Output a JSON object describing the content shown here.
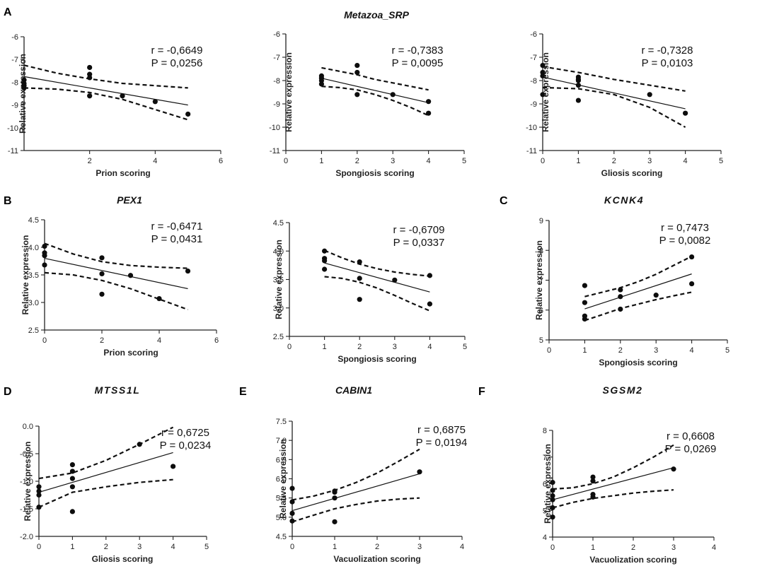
{
  "panel_letters": [
    "A",
    "B",
    "C",
    "D",
    "E",
    "F"
  ],
  "chart_data": [
    {
      "id": "a1",
      "panel": "A",
      "type": "scatter",
      "title": "Metazoa_SRP",
      "xlabel": "Prion scoring",
      "ylabel": "Relative expression",
      "xlim": [
        0,
        6
      ],
      "ylim": [
        -11,
        -6
      ],
      "xticks": [
        2,
        4,
        6
      ],
      "yticks": [
        -11,
        -10,
        -9,
        -8,
        -7,
        -6
      ],
      "r_text": "r = -0,6649",
      "p_text": "P = 0,0256",
      "points": [
        [
          0,
          -7.9
        ],
        [
          0,
          -8.05
        ],
        [
          0,
          -8.15
        ],
        [
          0,
          -8.25
        ],
        [
          2,
          -7.35
        ],
        [
          2,
          -7.65
        ],
        [
          2,
          -7.8
        ],
        [
          2,
          -8.6
        ],
        [
          3,
          -8.6
        ],
        [
          4,
          -8.85
        ],
        [
          5,
          -9.4
        ]
      ],
      "fit": {
        "intercept": -7.75,
        "slope": -0.25
      },
      "ci_upper": [
        [
          0,
          -7.25
        ],
        [
          1,
          -7.6
        ],
        [
          2,
          -7.85
        ],
        [
          3,
          -8.05
        ],
        [
          4,
          -8.15
        ],
        [
          5,
          -8.25
        ]
      ],
      "ci_lower": [
        [
          0,
          -8.25
        ],
        [
          1,
          -8.3
        ],
        [
          2,
          -8.45
        ],
        [
          3,
          -8.75
        ],
        [
          4,
          -9.2
        ],
        [
          5,
          -9.65
        ]
      ]
    },
    {
      "id": "a2",
      "panel": "A",
      "type": "scatter",
      "title": "",
      "xlabel": "Spongiosis scoring",
      "ylabel": "Relative expression",
      "xlim": [
        0,
        5
      ],
      "ylim": [
        -11,
        -6
      ],
      "xticks": [
        0,
        1,
        2,
        3,
        4,
        5
      ],
      "yticks": [
        -11,
        -10,
        -9,
        -8,
        -7,
        -6
      ],
      "r_text": "r = -0,7383",
      "p_text": "P = 0,0095",
      "points": [
        [
          1,
          -7.8
        ],
        [
          1,
          -7.9
        ],
        [
          1,
          -8.0
        ],
        [
          1,
          -8.15
        ],
        [
          2,
          -7.35
        ],
        [
          2,
          -7.65
        ],
        [
          2,
          -8.6
        ],
        [
          3,
          -8.6
        ],
        [
          4,
          -8.9
        ],
        [
          4,
          -9.4
        ]
      ],
      "fit": {
        "intercept": -7.55,
        "slope": -0.35
      },
      "ci_upper": [
        [
          1,
          -7.45
        ],
        [
          1.5,
          -7.6
        ],
        [
          2,
          -7.75
        ],
        [
          2.5,
          -7.95
        ],
        [
          3,
          -8.1
        ],
        [
          3.5,
          -8.25
        ],
        [
          4,
          -8.4
        ]
      ],
      "ci_lower": [
        [
          1,
          -8.25
        ],
        [
          1.5,
          -8.3
        ],
        [
          2,
          -8.4
        ],
        [
          2.5,
          -8.6
        ],
        [
          3,
          -8.85
        ],
        [
          3.5,
          -9.15
        ],
        [
          4,
          -9.5
        ]
      ]
    },
    {
      "id": "a3",
      "panel": "A",
      "type": "scatter",
      "title": "",
      "xlabel": "Gliosis scoring",
      "ylabel": "Relative expression",
      "xlim": [
        0,
        5
      ],
      "ylim": [
        -11,
        -6
      ],
      "xticks": [
        0,
        1,
        2,
        3,
        4,
        5
      ],
      "yticks": [
        -11,
        -10,
        -9,
        -8,
        -7,
        -6
      ],
      "r_text": "r = -0,7328",
      "p_text": "P = 0,0103",
      "points": [
        [
          0,
          -7.35
        ],
        [
          0,
          -7.65
        ],
        [
          0,
          -7.8
        ],
        [
          0,
          -8.6
        ],
        [
          1,
          -7.85
        ],
        [
          1,
          -7.95
        ],
        [
          1,
          -8.0
        ],
        [
          1,
          -8.2
        ],
        [
          1,
          -8.85
        ],
        [
          3,
          -8.6
        ],
        [
          4,
          -9.4
        ]
      ],
      "fit": {
        "intercept": -7.85,
        "slope": -0.34
      },
      "ci_upper": [
        [
          0,
          -7.4
        ],
        [
          1,
          -7.65
        ],
        [
          2,
          -7.95
        ],
        [
          3,
          -8.2
        ],
        [
          4,
          -8.45
        ]
      ],
      "ci_lower": [
        [
          0,
          -8.3
        ],
        [
          1,
          -8.35
        ],
        [
          2,
          -8.6
        ],
        [
          3,
          -9.15
        ],
        [
          4,
          -10.0
        ]
      ]
    },
    {
      "id": "b1",
      "panel": "B",
      "type": "scatter",
      "title": "PEX1",
      "xlabel": "Prion scoring",
      "ylabel": "Relative expression",
      "xlim": [
        0,
        6
      ],
      "ylim": [
        2.5,
        4.5
      ],
      "xticks": [
        0,
        2,
        4,
        6
      ],
      "yticks": [
        2.5,
        3.0,
        3.5,
        4.0,
        4.5
      ],
      "r_text": "r = -0,6471",
      "p_text": "P = 0,0431",
      "points": [
        [
          0,
          4.02
        ],
        [
          0,
          3.9
        ],
        [
          0,
          3.85
        ],
        [
          0,
          3.68
        ],
        [
          2,
          3.81
        ],
        [
          2,
          3.52
        ],
        [
          2,
          3.15
        ],
        [
          3,
          3.49
        ],
        [
          4,
          3.07
        ],
        [
          5,
          3.57
        ]
      ],
      "fit": {
        "intercept": 3.8,
        "slope": -0.11
      },
      "ci_upper": [
        [
          0,
          4.07
        ],
        [
          1,
          3.88
        ],
        [
          2,
          3.74
        ],
        [
          3,
          3.67
        ],
        [
          4,
          3.64
        ],
        [
          5,
          3.62
        ]
      ],
      "ci_lower": [
        [
          0,
          3.54
        ],
        [
          1,
          3.5
        ],
        [
          2,
          3.4
        ],
        [
          3,
          3.25
        ],
        [
          4,
          3.06
        ],
        [
          5,
          2.87
        ]
      ]
    },
    {
      "id": "b2",
      "panel": "B",
      "type": "scatter",
      "title": "",
      "xlabel": "Spongiosis scoring",
      "ylabel": "Relative expression",
      "xlim": [
        0,
        5
      ],
      "ylim": [
        2.5,
        4.5
      ],
      "xticks": [
        0,
        1,
        2,
        3,
        4,
        5
      ],
      "yticks": [
        2.5,
        3.0,
        3.5,
        4.0,
        4.5
      ],
      "r_text": "r = -0,6709",
      "p_text": "P = 0,0337",
      "points": [
        [
          1,
          4.0
        ],
        [
          1,
          3.87
        ],
        [
          1,
          3.83
        ],
        [
          1,
          3.68
        ],
        [
          2,
          3.81
        ],
        [
          2,
          3.52
        ],
        [
          2,
          3.15
        ],
        [
          3,
          3.49
        ],
        [
          4,
          3.57
        ],
        [
          4,
          3.07
        ]
      ],
      "fit": {
        "intercept": 3.96,
        "slope": -0.17
      },
      "ci_upper": [
        [
          1,
          4.01
        ],
        [
          1.5,
          3.88
        ],
        [
          2,
          3.77
        ],
        [
          2.5,
          3.69
        ],
        [
          3,
          3.63
        ],
        [
          3.5,
          3.59
        ],
        [
          4,
          3.56
        ]
      ],
      "ci_lower": [
        [
          1,
          3.55
        ],
        [
          1.5,
          3.52
        ],
        [
          2,
          3.45
        ],
        [
          2.5,
          3.35
        ],
        [
          3,
          3.22
        ],
        [
          3.5,
          3.08
        ],
        [
          4,
          2.95
        ]
      ]
    },
    {
      "id": "c",
      "panel": "C",
      "type": "scatter",
      "title": "KCNK4",
      "xlabel": "Spongiosis scoring",
      "ylabel": "Relative expression",
      "xlim": [
        0,
        5
      ],
      "ylim": [
        5,
        9
      ],
      "xticks": [
        0,
        1,
        2,
        3,
        4,
        5
      ],
      "yticks": [
        5,
        6,
        7,
        8,
        9
      ],
      "r_text": "r = 0,7473",
      "p_text": "P = 0,0082",
      "points": [
        [
          1,
          6.82
        ],
        [
          1,
          6.25
        ],
        [
          1,
          5.8
        ],
        [
          1,
          5.7
        ],
        [
          2,
          6.68
        ],
        [
          2,
          6.45
        ],
        [
          2,
          6.03
        ],
        [
          3,
          6.5
        ],
        [
          4,
          7.78
        ],
        [
          4,
          6.88
        ]
      ],
      "fit": {
        "intercept": 5.65,
        "slope": 0.39
      },
      "ci_upper": [
        [
          1,
          6.45
        ],
        [
          1.5,
          6.6
        ],
        [
          2,
          6.75
        ],
        [
          2.5,
          6.95
        ],
        [
          3,
          7.2
        ],
        [
          3.5,
          7.5
        ],
        [
          4,
          7.8
        ]
      ],
      "ci_lower": [
        [
          1,
          5.65
        ],
        [
          1.5,
          5.85
        ],
        [
          2,
          6.05
        ],
        [
          2.5,
          6.2
        ],
        [
          3,
          6.35
        ],
        [
          3.5,
          6.48
        ],
        [
          4,
          6.6
        ]
      ]
    },
    {
      "id": "d",
      "panel": "D",
      "type": "scatter",
      "title": "MTSS1L",
      "xlabel": "Gliosis scoring",
      "ylabel": "Relative expression",
      "xlim": [
        0,
        5
      ],
      "ylim": [
        -2.0,
        0.0
      ],
      "xticks": [
        0,
        1,
        2,
        3,
        4,
        5
      ],
      "yticks": [
        -2.0,
        -1.5,
        -1.0,
        -0.5,
        0.0
      ],
      "r_text": "r = 0,6725",
      "p_text": "P = 0,0234",
      "points": [
        [
          0,
          -1.1
        ],
        [
          0,
          -1.18
        ],
        [
          0,
          -1.25
        ],
        [
          0,
          -1.47
        ],
        [
          1,
          -0.7
        ],
        [
          1,
          -0.82
        ],
        [
          1,
          -0.95
        ],
        [
          1,
          -1.1
        ],
        [
          1,
          -1.55
        ],
        [
          3,
          -0.33
        ],
        [
          4,
          -0.73
        ]
      ],
      "fit": {
        "intercept": -1.2,
        "slope": 0.18
      },
      "ci_upper": [
        [
          0,
          -0.95
        ],
        [
          1,
          -0.85
        ],
        [
          2,
          -0.62
        ],
        [
          3,
          -0.33
        ],
        [
          4,
          -0.02
        ]
      ],
      "ci_lower": [
        [
          0,
          -1.47
        ],
        [
          1,
          -1.2
        ],
        [
          2,
          -1.1
        ],
        [
          3,
          -1.02
        ],
        [
          4,
          -0.97
        ]
      ]
    },
    {
      "id": "e",
      "panel": "E",
      "type": "scatter",
      "title": "CABIN1",
      "xlabel": "Vacuolization scoring",
      "ylabel": "Relative expression",
      "xlim": [
        0,
        4
      ],
      "ylim": [
        4.5,
        7.5
      ],
      "xticks": [
        0,
        1,
        2,
        3,
        4
      ],
      "yticks": [
        4.5,
        5.0,
        5.5,
        6.0,
        6.5,
        7.0,
        7.5
      ],
      "r_text": "r = 0,6875",
      "p_text": "P = 0,0194",
      "points": [
        [
          0,
          5.75
        ],
        [
          0,
          5.4
        ],
        [
          0,
          5.1
        ],
        [
          0,
          4.9
        ],
        [
          1,
          5.68
        ],
        [
          1,
          5.65
        ],
        [
          1,
          5.5
        ],
        [
          1,
          4.88
        ],
        [
          3,
          6.18
        ]
      ],
      "fit": {
        "intercept": 5.17,
        "slope": 0.32
      },
      "ci_upper": [
        [
          0,
          5.45
        ],
        [
          0.5,
          5.55
        ],
        [
          1,
          5.7
        ],
        [
          1.5,
          5.9
        ],
        [
          2,
          6.15
        ],
        [
          2.5,
          6.45
        ],
        [
          3,
          6.77
        ]
      ],
      "ci_lower": [
        [
          0,
          4.88
        ],
        [
          0.5,
          5.05
        ],
        [
          1,
          5.22
        ],
        [
          1.5,
          5.33
        ],
        [
          2,
          5.42
        ],
        [
          2.5,
          5.47
        ],
        [
          3,
          5.5
        ]
      ]
    },
    {
      "id": "f",
      "panel": "F",
      "type": "scatter",
      "title": "SGSM2",
      "xlabel": "Vacuolization scoring",
      "ylabel": "Relative expression",
      "xlim": [
        0,
        4
      ],
      "ylim": [
        4,
        8
      ],
      "xticks": [
        0,
        1,
        2,
        3,
        4
      ],
      "yticks": [
        4,
        5,
        6,
        7,
        8
      ],
      "r_text": "r = 0,6608",
      "p_text": "P = 0,0269",
      "points": [
        [
          0,
          6.05
        ],
        [
          0,
          5.75
        ],
        [
          0,
          5.55
        ],
        [
          0,
          5.4
        ],
        [
          0,
          5.1
        ],
        [
          0,
          4.75
        ],
        [
          1,
          6.25
        ],
        [
          1,
          6.1
        ],
        [
          1,
          5.6
        ],
        [
          1,
          5.5
        ],
        [
          3,
          6.55
        ]
      ],
      "fit": {
        "intercept": 5.4,
        "slope": 0.4
      },
      "ci_upper": [
        [
          0,
          5.8
        ],
        [
          0.5,
          5.85
        ],
        [
          1,
          6.0
        ],
        [
          1.5,
          6.25
        ],
        [
          2,
          6.6
        ],
        [
          2.5,
          7.0
        ],
        [
          3,
          7.45
        ]
      ],
      "ci_lower": [
        [
          0,
          5.1
        ],
        [
          0.5,
          5.3
        ],
        [
          1,
          5.45
        ],
        [
          1.5,
          5.55
        ],
        [
          2,
          5.65
        ],
        [
          2.5,
          5.72
        ],
        [
          3,
          5.77
        ]
      ]
    }
  ]
}
